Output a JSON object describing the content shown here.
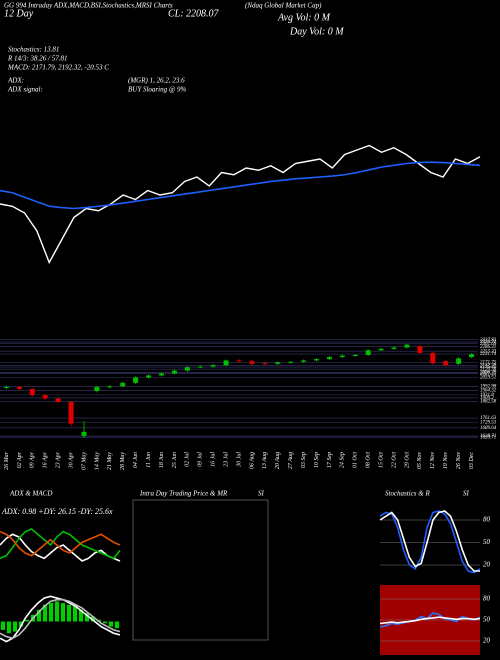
{
  "header": {
    "ticker_line": "GG 994 Intraday ADX,MACD,BSI,Stochastics,MRSI Charts",
    "title": "(Ndaq Global Market Cap)",
    "day_line": "12  Day",
    "close": "CL: 2208.07",
    "avg_vol": "Avg Vol: 0  M",
    "day_vol": "Day Vol: 0  M"
  },
  "stats": {
    "stochastics": "Stochastics: 13.81",
    "rsi": "R  14/3: 38.26 / 57.81",
    "macd": "MACD: 2171.79, 2192.32, -20.53 C",
    "adx_label": "ADX:",
    "adx_value": "(MGR) 1, 26.2, 23.6",
    "adx_signal_label": "ADX  signal:",
    "adx_signal": "BUY Sloaring @ 9%"
  },
  "chart_data": [
    {
      "type": "line",
      "ylim": [
        1900,
        2500
      ],
      "series": [
        {
          "color": "#ffffff",
          "values": [
            2180,
            2175,
            2160,
            2120,
            2050,
            2100,
            2150,
            2170,
            2165,
            2180,
            2200,
            2190,
            2210,
            2200,
            2205,
            2230,
            2240,
            2220,
            2250,
            2245,
            2260,
            2255,
            2265,
            2250,
            2270,
            2275,
            2280,
            2260,
            2290,
            2300,
            2310,
            2295,
            2305,
            2290,
            2270,
            2250,
            2240,
            2280,
            2270,
            2285
          ]
        },
        {
          "color": "#1f5fff",
          "values": [
            2210,
            2205,
            2195,
            2185,
            2175,
            2172,
            2170,
            2172,
            2175,
            2178,
            2182,
            2186,
            2190,
            2194,
            2198,
            2202,
            2206,
            2210,
            2214,
            2218,
            2222,
            2226,
            2230,
            2233,
            2236,
            2238,
            2240,
            2242,
            2245,
            2250,
            2256,
            2262,
            2266,
            2270,
            2272,
            2273,
            2272,
            2270,
            2268,
            2266
          ]
        }
      ]
    },
    {
      "type": "candlestick",
      "ylim": [
        1600,
        2350
      ],
      "grid": true,
      "yticks": [
        2337.83,
        2320.21,
        2307.69,
        2286.31,
        2253.23,
        2231.74,
        2171.75,
        2147.28,
        2136.32,
        2120.36,
        2096.79,
        2087.45,
        2059.51,
        1992.98,
        1964.32,
        1931.8,
        1909.2,
        1882.58,
        1761.63,
        1729.53,
        1689.64,
        1628.71,
        1620.71
      ],
      "categories": [
        "26 Mar",
        "02 Apr",
        "09 Apr",
        "16 Apr",
        "23 Apr",
        "30 Apr",
        "07 May",
        "14 May",
        "21 May",
        "28 May",
        "04 Jun",
        "11 Jun",
        "18 Jun",
        "25 Jun",
        "02 Jul",
        "09 Jul",
        "16 Jul",
        "23 Jul",
        "30 Jul",
        "06 Aug",
        "13 Aug",
        "20 Aug",
        "27 Aug",
        "03 Sep",
        "10 Sep",
        "17 Sep",
        "24 Sep",
        "01 Oct",
        "08 Oct",
        "15 Oct",
        "22 Oct",
        "29 Oct",
        "05 Nov",
        "12 Nov",
        "19 Nov",
        "26 Nov",
        "03 Dec"
      ],
      "open": [
        1985,
        1990,
        1975,
        1930,
        1905,
        1880,
        1630,
        1960,
        1990,
        1995,
        2020,
        2060,
        2075,
        2090,
        2110,
        2135,
        2140,
        2150,
        2185,
        2180,
        2165,
        2160,
        2170,
        2175,
        2185,
        2195,
        2210,
        2220,
        2225,
        2260,
        2270,
        2280,
        2290,
        2240,
        2180,
        2160,
        2210
      ],
      "high": [
        2000,
        1998,
        1980,
        1940,
        1912,
        1885,
        1740,
        2000,
        2005,
        2028,
        2068,
        2082,
        2098,
        2118,
        2142,
        2150,
        2160,
        2192,
        2195,
        2188,
        2172,
        2178,
        2182,
        2192,
        2202,
        2218,
        2228,
        2232,
        2268,
        2278,
        2288,
        2310,
        2298,
        2248,
        2188,
        2208,
        2238
      ],
      "low": [
        1975,
        1965,
        1920,
        1895,
        1870,
        1700,
        1615,
        1950,
        1980,
        1988,
        2012,
        2052,
        2068,
        2082,
        2102,
        2128,
        2132,
        2142,
        2172,
        2150,
        2150,
        2152,
        2162,
        2168,
        2178,
        2188,
        2202,
        2212,
        2218,
        2252,
        2262,
        2272,
        2232,
        2155,
        2140,
        2152,
        2202
      ],
      "close": [
        1990,
        1975,
        1930,
        1905,
        1880,
        1720,
        1660,
        1990,
        1995,
        2020,
        2060,
        2075,
        2090,
        2110,
        2135,
        2140,
        2150,
        2185,
        2180,
        2160,
        2160,
        2170,
        2175,
        2185,
        2195,
        2210,
        2220,
        2225,
        2260,
        2270,
        2280,
        2300,
        2240,
        2165,
        2150,
        2200,
        2230
      ],
      "up_color": "#00c000",
      "down_color": "#e00000"
    },
    {
      "type": "line",
      "title": "ADX  & MACD",
      "label": "ADX: 0.98  +DY: 26.15  -DY: 25.6x",
      "ylim": [
        0,
        60
      ],
      "series": [
        {
          "color": "#ffffff",
          "values": [
            30,
            35,
            38,
            36,
            30,
            25,
            22,
            20,
            24,
            28,
            30,
            26,
            22,
            18,
            20,
            24,
            26,
            22,
            20,
            18
          ]
        },
        {
          "color": "#00c000",
          "values": [
            20,
            22,
            28,
            35,
            40,
            42,
            38,
            34,
            30,
            36,
            40,
            38,
            34,
            30,
            28,
            26,
            24,
            22,
            20,
            26
          ]
        },
        {
          "color": "#e05000",
          "values": [
            40,
            38,
            34,
            28,
            24,
            22,
            26,
            30,
            34,
            30,
            26,
            24,
            28,
            32,
            34,
            36,
            38,
            35,
            32,
            30
          ]
        }
      ]
    },
    {
      "type": "line",
      "ylim": [
        -40,
        40
      ],
      "bar_color": "#00d000",
      "values": [
        -10,
        -14,
        -12,
        -6,
        2,
        8,
        14,
        20,
        22,
        24,
        22,
        20,
        18,
        14,
        10,
        6,
        2,
        -2,
        -6,
        -8
      ],
      "series": [
        {
          "color": "#ffffff",
          "values": [
            -20,
            -24,
            -20,
            -10,
            4,
            14,
            22,
            28,
            30,
            28,
            26,
            22,
            18,
            12,
            6,
            0,
            -6,
            -10,
            -14,
            -16
          ]
        },
        {
          "color": "#bbbbbb",
          "values": [
            -14,
            -18,
            -20,
            -16,
            -8,
            2,
            10,
            18,
            24,
            26,
            26,
            24,
            20,
            16,
            10,
            4,
            -2,
            -6,
            -10,
            -12
          ]
        }
      ]
    },
    {
      "type": "panel",
      "title": "Intra  Day Trading Price  & MR",
      "title2": "SI"
    },
    {
      "type": "line",
      "title": "Stochastics  & R",
      "title2": "SI",
      "ylim": [
        0,
        100
      ],
      "yticks": [
        80,
        50,
        20
      ],
      "grid": true,
      "background": "#000000",
      "series": [
        {
          "color": "#1f5fff",
          "values": [
            85,
            90,
            88,
            70,
            40,
            20,
            15,
            30,
            70,
            90,
            92,
            88,
            75,
            50,
            25,
            12,
            10,
            15
          ]
        },
        {
          "color": "#ffffff",
          "values": [
            80,
            85,
            90,
            80,
            55,
            30,
            18,
            22,
            50,
            80,
            90,
            92,
            85,
            65,
            40,
            20,
            12,
            12
          ]
        }
      ]
    },
    {
      "type": "line",
      "ylim": [
        0,
        100
      ],
      "yticks": [
        80,
        50,
        20
      ],
      "grid": true,
      "background": "#a00000",
      "series": [
        {
          "color": "#3070ff",
          "values": [
            40,
            42,
            45,
            44,
            46,
            48,
            50,
            55,
            52,
            60,
            58,
            52,
            50,
            48,
            55,
            52,
            50,
            54
          ]
        },
        {
          "color": "#ffffff",
          "values": [
            45,
            46,
            47,
            46,
            47,
            48,
            49,
            51,
            52,
            53,
            54,
            53,
            52,
            51,
            52,
            52,
            51,
            52
          ]
        }
      ]
    }
  ]
}
